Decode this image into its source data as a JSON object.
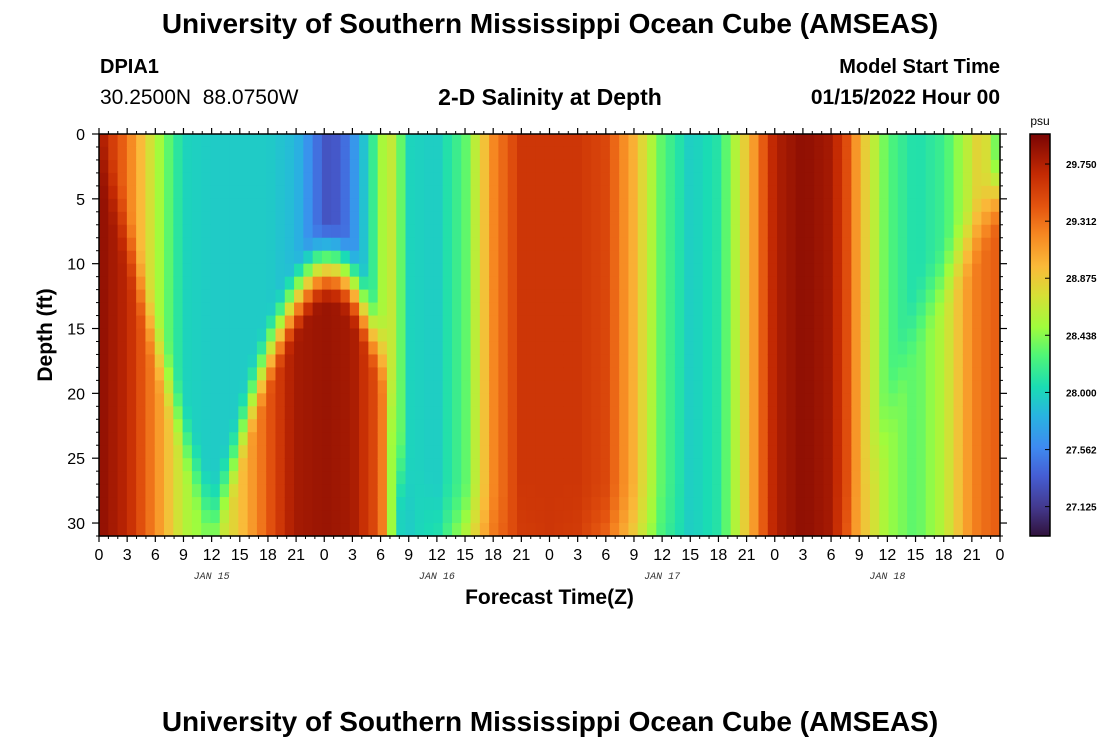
{
  "header": {
    "title": "University of Southern Mississippi Ocean Cube (AMSEAS)",
    "station_id": "DPIA1",
    "station_coords": "30.2500N  88.0750W",
    "plot_title": "2-D Salinity at Depth",
    "model_start_label": "Model Start Time",
    "model_start_time": "01/15/2022 Hour 00"
  },
  "footer": {
    "title": "University of Southern Mississippi Ocean Cube (AMSEAS)"
  },
  "chart_data": {
    "type": "heatmap",
    "title": "2-D Salinity at Depth",
    "xlabel": "Forecast Time(Z)",
    "ylabel": "Depth (ft)",
    "x_hours_range": [
      0,
      96
    ],
    "ylim": [
      0,
      31
    ],
    "x_tick_labels": [
      "0",
      "3",
      "6",
      "9",
      "12",
      "15",
      "18",
      "21",
      "0",
      "3",
      "6",
      "9",
      "12",
      "15",
      "18",
      "21",
      "0",
      "3",
      "6",
      "9",
      "12",
      "15",
      "18",
      "21",
      "0",
      "3",
      "6",
      "9",
      "12",
      "15",
      "18",
      "21",
      "0"
    ],
    "date_labels": [
      {
        "hour": 12,
        "label": "JAN 15"
      },
      {
        "hour": 36,
        "label": "JAN 16"
      },
      {
        "hour": 60,
        "label": "JAN 17"
      },
      {
        "hour": 84,
        "label": "JAN 18"
      }
    ],
    "y_ticks": [
      0,
      5,
      10,
      15,
      20,
      25,
      30
    ],
    "colorbar": {
      "unit": "psu",
      "min": 26.9,
      "max": 29.98,
      "tick_values": [
        27.125,
        27.562,
        28.0,
        28.438,
        28.875,
        29.312,
        29.75
      ],
      "tick_labels": [
        "27.125",
        "27.562",
        "28.000",
        "28.438",
        "28.875",
        "29.312",
        "29.750"
      ]
    },
    "surface_profile": {
      "hours": [
        0,
        3,
        6,
        8,
        9,
        12,
        15,
        18,
        21,
        23,
        24,
        25,
        26,
        27,
        29,
        30,
        31,
        32,
        33,
        36,
        39,
        42,
        45,
        48,
        51,
        54,
        57,
        60,
        63,
        66,
        69,
        72,
        75,
        78,
        80,
        81,
        84,
        87,
        90,
        93,
        94,
        95,
        96
      ],
      "salinity": [
        29.8,
        29.3,
        28.6,
        28.2,
        28.0,
        27.95,
        27.95,
        27.95,
        27.85,
        27.5,
        27.3,
        27.3,
        27.4,
        27.6,
        28.1,
        28.5,
        28.7,
        28.4,
        28.0,
        27.95,
        28.3,
        29.2,
        29.6,
        29.6,
        29.6,
        29.5,
        29.0,
        28.3,
        27.95,
        28.1,
        28.9,
        29.75,
        29.9,
        29.8,
        29.4,
        29.0,
        28.3,
        28.05,
        28.2,
        28.7,
        28.9,
        28.6,
        28.2
      ]
    },
    "bottom_profile": {
      "hours": [
        0,
        3,
        6,
        8,
        9,
        11,
        12,
        15,
        18,
        20,
        21,
        24,
        27,
        30,
        31,
        32,
        33,
        36,
        39,
        42,
        45,
        48,
        51,
        54,
        57,
        60,
        63,
        66,
        69,
        72,
        75,
        78,
        80,
        81,
        84,
        87,
        90,
        92,
        93,
        94,
        96
      ],
      "salinity": [
        29.9,
        29.7,
        29.2,
        28.8,
        28.6,
        28.45,
        28.5,
        28.9,
        29.4,
        29.7,
        29.8,
        29.85,
        29.8,
        29.4,
        28.6,
        28.0,
        27.95,
        28.1,
        28.7,
        29.3,
        29.55,
        29.6,
        29.55,
        29.3,
        28.8,
        28.2,
        27.95,
        28.1,
        28.9,
        29.75,
        29.9,
        29.8,
        29.3,
        29.0,
        28.5,
        28.3,
        28.6,
        29.0,
        29.2,
        29.3,
        29.4
      ]
    },
    "transition_depth": {
      "hours": [
        0,
        3,
        6,
        9,
        12,
        14,
        16,
        18,
        20,
        22,
        23,
        24,
        25,
        26,
        27,
        28,
        29,
        30,
        31,
        32,
        36,
        48,
        60,
        72,
        80,
        84,
        87,
        90,
        93,
        96
      ],
      "depth_ft": [
        1,
        8,
        16,
        23,
        30,
        26,
        21,
        17,
        14,
        11.5,
        10.5,
        10,
        10,
        10.5,
        11.5,
        13,
        15,
        16,
        20,
        26,
        30,
        30,
        30,
        30,
        30,
        22,
        14,
        11,
        8,
        4
      ]
    }
  }
}
